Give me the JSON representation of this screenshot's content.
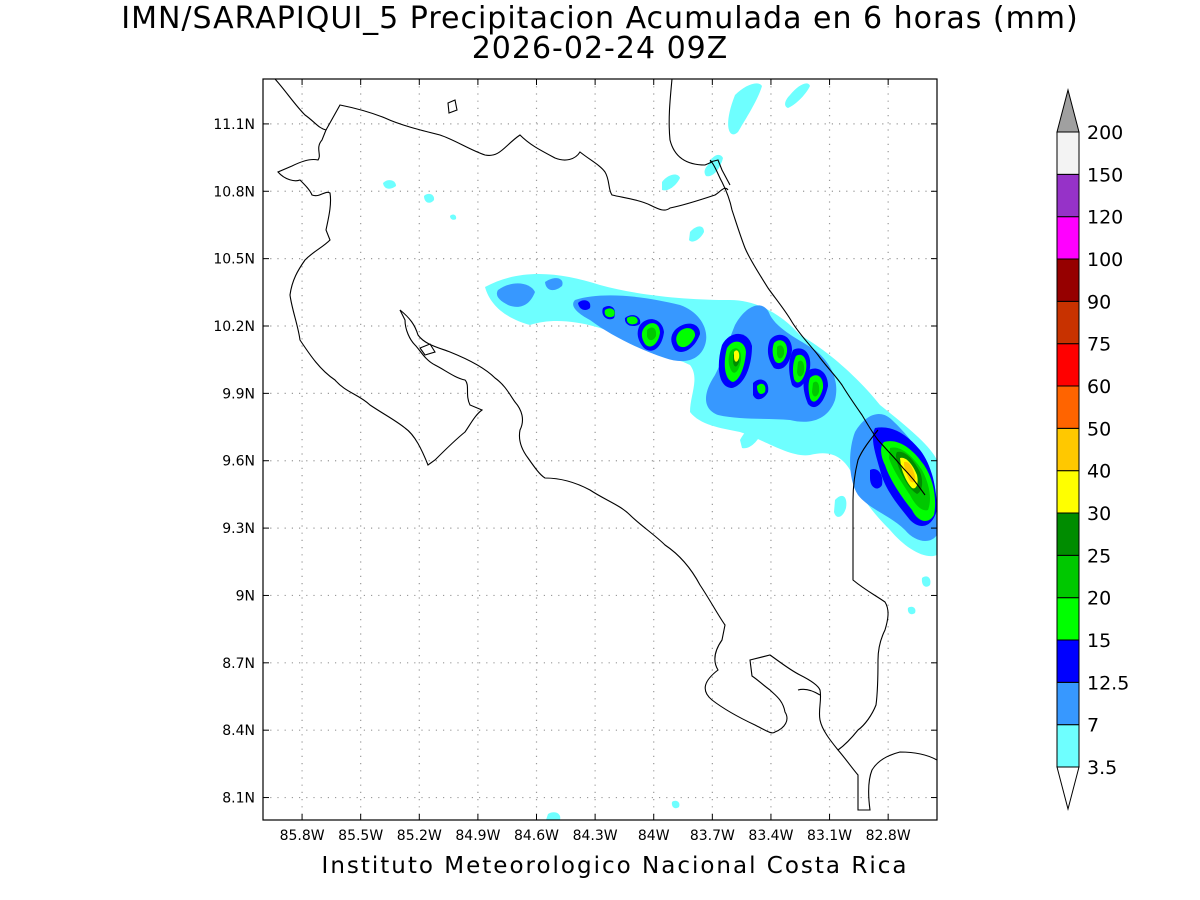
{
  "header": {
    "title": "IMN/SARAPIQUI_5 Precipitacion Acumulada en 6 horas (mm)",
    "subtitle": "2026-02-24 09Z"
  },
  "footer": {
    "credit": "Instituto Meteorologico Nacional Costa Rica"
  },
  "map": {
    "lon_range": [
      -86.0,
      -82.55
    ],
    "lat_range": [
      8.0,
      11.3
    ],
    "grid": "dotted",
    "lat_ticks": [
      {
        "value": 11.1,
        "label": "11.1N"
      },
      {
        "value": 10.8,
        "label": "10.8N"
      },
      {
        "value": 10.5,
        "label": "10.5N"
      },
      {
        "value": 10.2,
        "label": "10.2N"
      },
      {
        "value": 9.9,
        "label": "9.9N"
      },
      {
        "value": 9.6,
        "label": "9.6N"
      },
      {
        "value": 9.3,
        "label": "9.3N"
      },
      {
        "value": 9.0,
        "label": "9N"
      },
      {
        "value": 8.7,
        "label": "8.7N"
      },
      {
        "value": 8.4,
        "label": "8.4N"
      },
      {
        "value": 8.1,
        "label": "8.1N"
      }
    ],
    "lon_ticks": [
      {
        "value": -85.8,
        "label": "85.8W"
      },
      {
        "value": -85.5,
        "label": "85.5W"
      },
      {
        "value": -85.2,
        "label": "85.2W"
      },
      {
        "value": -84.9,
        "label": "84.9W"
      },
      {
        "value": -84.6,
        "label": "84.6W"
      },
      {
        "value": -84.3,
        "label": "84.3W"
      },
      {
        "value": -84.0,
        "label": "84W"
      },
      {
        "value": -83.7,
        "label": "83.7W"
      },
      {
        "value": -83.4,
        "label": "83.4W"
      },
      {
        "value": -83.1,
        "label": "83.1W"
      },
      {
        "value": -82.8,
        "label": "82.8W"
      }
    ]
  },
  "colorbar": {
    "over_color": "#a0a0a0",
    "under_color": "#ffffff",
    "bins": [
      {
        "color": "#6effff",
        "label": "3.5"
      },
      {
        "color": "#3798ff",
        "label": "7"
      },
      {
        "color": "#0000ff",
        "label": "12.5"
      },
      {
        "color": "#00ff00",
        "label": "15"
      },
      {
        "color": "#00c800",
        "label": "20"
      },
      {
        "color": "#008c00",
        "label": "25"
      },
      {
        "color": "#ffff00",
        "label": "30"
      },
      {
        "color": "#ffc800",
        "label": "40"
      },
      {
        "color": "#ff6400",
        "label": "50"
      },
      {
        "color": "#ff0000",
        "label": "60"
      },
      {
        "color": "#c83200",
        "label": "75"
      },
      {
        "color": "#960000",
        "label": "90"
      },
      {
        "color": "#ff00ff",
        "label": "100"
      },
      {
        "color": "#9632c8",
        "label": "120"
      },
      {
        "color": "#f3f3f3",
        "label": "150"
      }
    ],
    "top_label": "200"
  }
}
